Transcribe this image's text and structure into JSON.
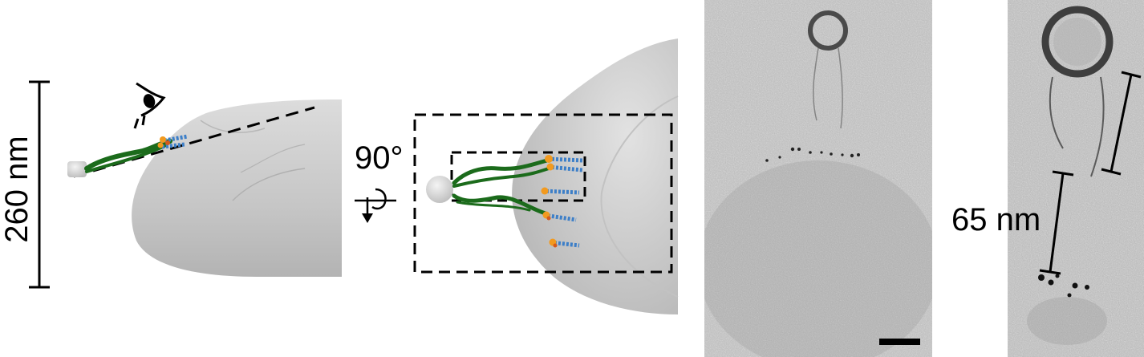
{
  "labels": {
    "scale_left": "260 nm",
    "rotation": "90°",
    "scale_right": "65 nm"
  },
  "icons": {
    "eye": "eye-icon",
    "rotate": "rotate-arrow-icon"
  },
  "colors": {
    "cell": "#c8c8c8",
    "filament": "#1b6b1b",
    "motor_blue": "#3d7fc8",
    "motor_orange": "#f29a1f",
    "tomogram": "#b8b8b8",
    "scale_bar": "#000000"
  }
}
